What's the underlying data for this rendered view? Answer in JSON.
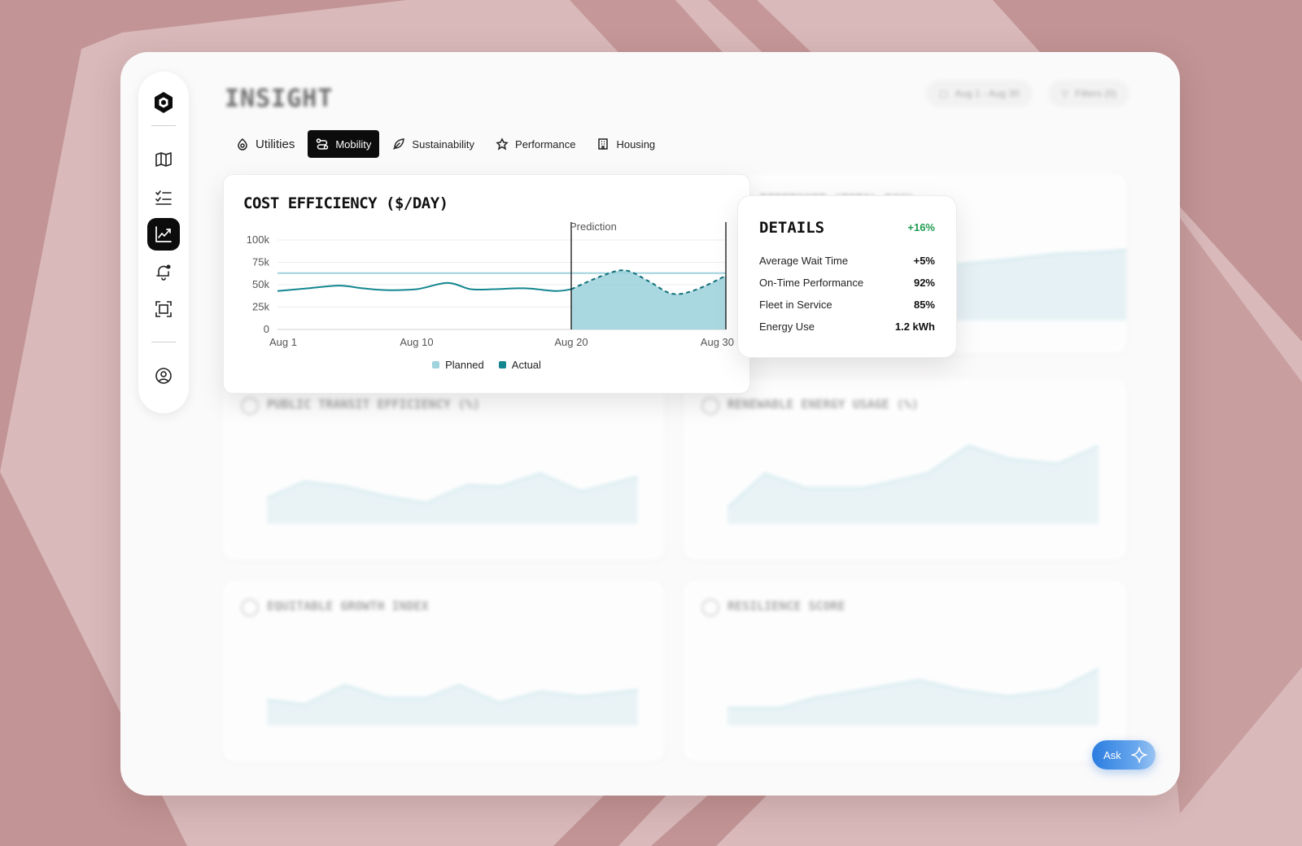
{
  "header": {
    "title": "INSIGHT",
    "date_range": "Aug 1 - Aug 30",
    "filters": "Filters (0)"
  },
  "tabs": [
    {
      "label": "Utilities",
      "icon": "utilities-icon",
      "active": false
    },
    {
      "label": "Mobility",
      "icon": "mobility-icon",
      "active": true
    },
    {
      "label": "Sustainability",
      "icon": "leaf-icon",
      "active": false
    },
    {
      "label": "Performance",
      "icon": "performance-icon",
      "active": false
    },
    {
      "label": "Housing",
      "icon": "building-icon",
      "active": false
    }
  ],
  "sidebar": {
    "items": [
      {
        "name": "logo-icon"
      },
      {
        "name": "map-icon"
      },
      {
        "name": "tasks-icon"
      },
      {
        "name": "analytics-icon",
        "active": true
      },
      {
        "name": "notification-icon"
      },
      {
        "name": "scan-icon"
      },
      {
        "name": "user-icon"
      }
    ]
  },
  "main_chart": {
    "title": "COST EFFICIENCY ($/DAY)",
    "prediction_label": "Prediction",
    "legend": [
      {
        "label": "Planned",
        "color": "#9fd3de"
      },
      {
        "label": "Actual",
        "color": "#13868f"
      }
    ]
  },
  "chart_data": {
    "type": "line",
    "title": "COST EFFICIENCY ($/DAY)",
    "x_ticks": [
      "Aug 1",
      "Aug 10",
      "Aug 20",
      "Aug 30"
    ],
    "y_ticks": [
      "100k",
      "75k",
      "50k",
      "25k",
      "0"
    ],
    "ylim": [
      0,
      100000
    ],
    "xlim": [
      1,
      30
    ],
    "series": [
      {
        "name": "Planned",
        "values_x": [
          1,
          30
        ],
        "values_y": [
          63000,
          63000
        ]
      },
      {
        "name": "Actual",
        "values_x": [
          1,
          3,
          5,
          6.5,
          8,
          10,
          12,
          13.5,
          15,
          17,
          19,
          20
        ],
        "values_y": [
          43000,
          46000,
          49000,
          46000,
          44000,
          45000,
          52000,
          45000,
          45000,
          46000,
          43000,
          45000
        ]
      },
      {
        "name": "Prediction",
        "values_x": [
          20,
          22,
          23.5,
          25,
          26.5,
          28,
          30
        ],
        "values_y": [
          45000,
          60000,
          66000,
          54000,
          40000,
          44000,
          60000
        ]
      }
    ],
    "prediction_start": 20,
    "prediction_end": 30,
    "grid": true,
    "legend_position": "bottom-center",
    "colors": {
      "planned": "#9fd3de",
      "actual": "#13868f",
      "prediction_fill": "#9bd1dc"
    }
  },
  "details": {
    "title": "DETAILS",
    "change": "+16%",
    "rows": [
      {
        "label": "Average Wait Time",
        "value": "+5%"
      },
      {
        "label": "On-Time Performance",
        "value": "92%"
      },
      {
        "label": "Fleet in Service",
        "value": "85%"
      },
      {
        "label": "Energy Use",
        "value": "1.2 kWh"
      }
    ]
  },
  "background_cards": [
    {
      "title": "RIDERSHIP (TOTAL DAY)"
    },
    {
      "title": "PUBLIC TRANSIT EFFICIENCY (%)"
    },
    {
      "title": "RENEWABLE ENERGY USAGE (%)"
    },
    {
      "title": "EQUITABLE GROWTH INDEX"
    },
    {
      "title": "RESILIENCE SCORE"
    }
  ],
  "ask_button": {
    "label": "Ask"
  }
}
